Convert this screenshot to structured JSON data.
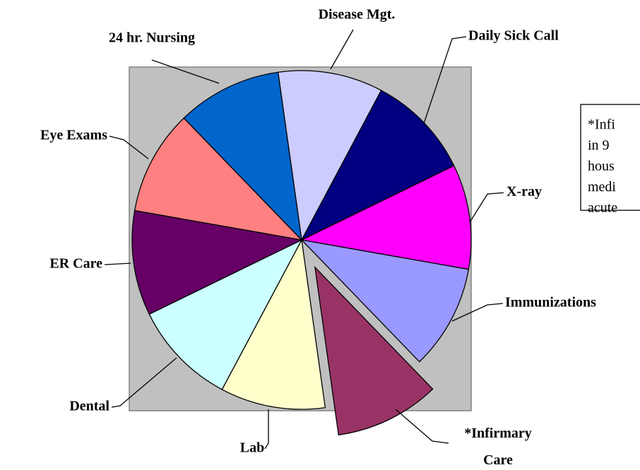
{
  "chart_data": {
    "type": "pie",
    "categories": [
      "Disease Mgt.",
      "Daily Sick Call",
      "X-ray",
      "Immunizations",
      "*Infirmary Care",
      "Lab",
      "Dental",
      "ER Care",
      "Eye Exams",
      "24 hr. Nursing"
    ],
    "values": [
      10,
      10,
      10,
      10,
      10,
      10,
      10,
      10,
      10,
      10
    ],
    "colors": [
      "#ccccff",
      "#000080",
      "#ff00ff",
      "#9999ff",
      "#993366",
      "#ffffcc",
      "#ccffff",
      "#660066",
      "#ff8080",
      "#0066cc"
    ],
    "explode": [
      false,
      false,
      false,
      false,
      true,
      false,
      false,
      false,
      false,
      false
    ],
    "annotation": [
      "*Infi",
      "in 9",
      "hous",
      "medi",
      "acute"
    ]
  }
}
